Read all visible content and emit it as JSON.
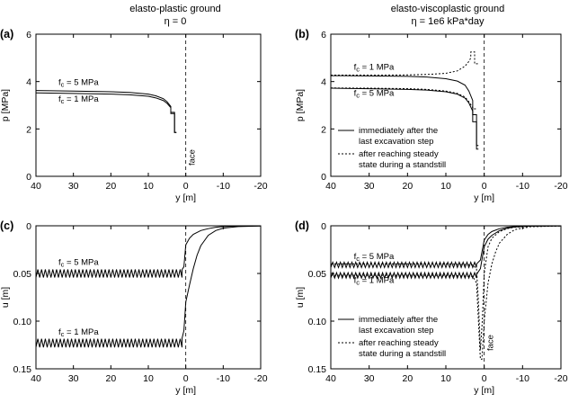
{
  "column_titles": [
    {
      "line1": "elasto-plastic ground",
      "line2": "η = 0"
    },
    {
      "line1": "elasto-viscoplastic ground",
      "line2": "η = 1e6 kPa*day"
    }
  ],
  "legend": {
    "solid_line1": "immediately after the",
    "solid_line2": "last excavation step",
    "dashed_line1": "after reaching steady",
    "dashed_line2": "state during a standstill"
  },
  "chart_data": [
    {
      "id": "a",
      "panel_label": "(a)",
      "type": "line",
      "xlabel": "y [m]",
      "ylabel": "p [MPa]",
      "xlim": [
        40,
        -20
      ],
      "ylim": [
        0,
        6
      ],
      "xticks": [
        40,
        30,
        20,
        10,
        0,
        -10,
        -20
      ],
      "yticks": [
        0,
        2,
        4,
        6
      ],
      "xtick_labels": [
        "40",
        "30",
        "20",
        "10",
        "0",
        "-10",
        "-20"
      ],
      "ytick_labels": [
        "0",
        "2",
        "4",
        "6"
      ],
      "face_label": "face",
      "annotations": [
        {
          "text": "fc = 5 MPa",
          "x": 34,
          "y": 3.85
        },
        {
          "text": "fc = 1 MPa",
          "x": 34,
          "y": 3.15
        }
      ],
      "series": [
        {
          "name": "fc = 5 MPa",
          "style": "solid",
          "x": [
            40,
            30,
            20,
            15,
            10,
            8,
            6,
            5,
            4,
            4,
            3,
            3,
            2.5
          ],
          "y": [
            3.62,
            3.6,
            3.57,
            3.54,
            3.47,
            3.4,
            3.28,
            3.15,
            2.95,
            2.7,
            2.7,
            1.85,
            1.85
          ]
        },
        {
          "name": "fc = 1 MPa",
          "style": "solid",
          "x": [
            40,
            30,
            20,
            15,
            10,
            8,
            6,
            5,
            4,
            4,
            3,
            3,
            2.5
          ],
          "y": [
            3.52,
            3.5,
            3.47,
            3.44,
            3.38,
            3.31,
            3.2,
            3.08,
            2.9,
            2.65,
            2.65,
            1.85,
            1.85
          ]
        }
      ]
    },
    {
      "id": "b",
      "panel_label": "(b)",
      "type": "line",
      "xlabel": "y [m]",
      "ylabel": "p [MPa]",
      "xlim": [
        40,
        -20
      ],
      "ylim": [
        0,
        6
      ],
      "xticks": [
        40,
        30,
        20,
        10,
        0,
        -10,
        -20
      ],
      "yticks": [
        0,
        2,
        4,
        6
      ],
      "xtick_labels": [
        "40",
        "30",
        "20",
        "10",
        "0",
        "-10",
        "-20"
      ],
      "ytick_labels": [
        "0",
        "2",
        "4",
        "6"
      ],
      "annotations": [
        {
          "text": "fc = 1 MPa",
          "x": 34,
          "y": 4.5
        },
        {
          "text": "fc = 5 MPa",
          "x": 34,
          "y": 3.4
        }
      ],
      "series": [
        {
          "name": "fc = 1 MPa",
          "style": "solid",
          "x": [
            40,
            30,
            20,
            15,
            10,
            7,
            5,
            4,
            3,
            3,
            2,
            2,
            1.5
          ],
          "y": [
            4.25,
            4.24,
            4.22,
            4.19,
            4.12,
            4.02,
            3.85,
            3.6,
            3.2,
            2.6,
            2.6,
            1.3,
            1.3
          ]
        },
        {
          "name": "fc = 1 MPa",
          "style": "dashed",
          "x": [
            40,
            30,
            20,
            15,
            10,
            7,
            5,
            4,
            3.5,
            3.5,
            2.5,
            2.5,
            1.5
          ],
          "y": [
            4.27,
            4.27,
            4.28,
            4.3,
            4.35,
            4.45,
            4.65,
            4.85,
            5.0,
            5.25,
            5.25,
            4.75,
            4.75
          ]
        },
        {
          "name": "fc = 5 MPa",
          "style": "solid",
          "x": [
            40,
            30,
            20,
            15,
            10,
            7,
            5,
            4,
            3,
            3,
            2,
            2,
            1.5
          ],
          "y": [
            3.72,
            3.7,
            3.67,
            3.64,
            3.57,
            3.47,
            3.3,
            3.1,
            2.75,
            2.3,
            2.3,
            1.15,
            1.15
          ]
        },
        {
          "name": "fc = 5 MPa",
          "style": "dashed",
          "x": [
            40,
            30,
            20,
            15,
            10,
            7,
            5,
            4,
            3,
            3,
            2
          ],
          "y": [
            3.73,
            3.72,
            3.7,
            3.67,
            3.6,
            3.5,
            3.35,
            3.15,
            2.9,
            2.85,
            2.85
          ]
        }
      ]
    },
    {
      "id": "c",
      "panel_label": "(c)",
      "type": "line",
      "xlabel": "y [m]",
      "ylabel": "u [m]",
      "xlim": [
        40,
        -20
      ],
      "ylim": [
        0.15,
        0
      ],
      "xticks": [
        40,
        30,
        20,
        10,
        0,
        -10,
        -20
      ],
      "yticks": [
        0,
        0.05,
        0.1,
        0.15
      ],
      "xtick_labels": [
        "40",
        "30",
        "20",
        "10",
        "0",
        "-10",
        "-20"
      ],
      "ytick_labels": [
        "0",
        "0.05",
        "0.10",
        "0.15"
      ],
      "annotations": [
        {
          "text": "fc = 5 MPa",
          "x": 34,
          "y": 0.041
        },
        {
          "text": "fc = 1 MPa",
          "x": 34,
          "y": 0.114
        }
      ],
      "series": [
        {
          "name": "fc = 5 MPa",
          "style": "solid",
          "sawtooth": {
            "x_from": 40,
            "x_to": 1,
            "center": 0.05,
            "amplitude": 0.0042,
            "period": 1
          },
          "x": [
            1,
            0.5,
            0,
            -1,
            -2,
            -4,
            -6,
            -8,
            -10,
            -14,
            -20
          ],
          "y": [
            0.046,
            0.043,
            0.02,
            0.013,
            0.009,
            0.005,
            0.003,
            0.0015,
            0.0008,
            0.0003,
            0.0001
          ]
        },
        {
          "name": "fc = 1 MPa",
          "style": "solid",
          "sawtooth": {
            "x_from": 40,
            "x_to": 1,
            "center": 0.123,
            "amplitude": 0.0045,
            "period": 1
          },
          "x": [
            1,
            0.5,
            0,
            -1,
            -2,
            -3,
            -4,
            -6,
            -8,
            -10,
            -14,
            -20
          ],
          "y": [
            0.118,
            0.11,
            0.08,
            0.062,
            0.045,
            0.031,
            0.021,
            0.01,
            0.005,
            0.0025,
            0.0008,
            0.0002
          ]
        }
      ]
    },
    {
      "id": "d",
      "panel_label": "(d)",
      "type": "line",
      "xlabel": "y [m]",
      "ylabel": "u [m]",
      "xlim": [
        40,
        -20
      ],
      "ylim": [
        0.15,
        0
      ],
      "xticks": [
        40,
        30,
        20,
        10,
        0,
        -10,
        -20
      ],
      "yticks": [
        0,
        0.05,
        0.1,
        0.15
      ],
      "xtick_labels": [
        "40",
        "30",
        "20",
        "10",
        "0",
        "-10",
        "-20"
      ],
      "ytick_labels": [
        "0",
        "0.05",
        "0.10",
        "0.15"
      ],
      "face_label": "face",
      "annotations": [
        {
          "text": "fc = 5 MPa",
          "x": 34,
          "y": 0.035
        },
        {
          "text": "fc = 1 MPa",
          "x": 34,
          "y": 0.06
        }
      ],
      "series": [
        {
          "name": "fc = 5 MPa",
          "style": "solid",
          "sawtooth": {
            "x_from": 40,
            "x_to": 2,
            "center": 0.041,
            "amplitude": 0.0028,
            "period": 1
          },
          "x": [
            2,
            1,
            0,
            -1,
            -2,
            -4,
            -6,
            -8,
            -12,
            -20
          ],
          "y": [
            0.04,
            0.036,
            0.015,
            0.009,
            0.006,
            0.003,
            0.0015,
            0.0008,
            0.0003,
            0.0001
          ]
        },
        {
          "name": "fc = 1 MPa",
          "style": "solid",
          "sawtooth": {
            "x_from": 40,
            "x_to": 2,
            "center": 0.052,
            "amplitude": 0.0028,
            "period": 1
          },
          "x": [
            2,
            1,
            0,
            -1,
            -2,
            -4,
            -6,
            -8,
            -12,
            -20
          ],
          "y": [
            0.051,
            0.045,
            0.022,
            0.014,
            0.01,
            0.005,
            0.0025,
            0.0012,
            0.0004,
            0.0001
          ]
        },
        {
          "name": "fc = 5 MPa",
          "style": "dashed",
          "x": [
            40,
            10,
            3,
            2,
            1.5,
            1,
            0.5,
            0,
            -1,
            -2,
            -4,
            -6,
            -8,
            -12,
            -20
          ],
          "y": [
            0.04,
            0.04,
            0.041,
            0.045,
            0.08,
            0.13,
            0.1,
            0.05,
            0.022,
            0.013,
            0.006,
            0.003,
            0.0015,
            0.0005,
            0.0001
          ]
        },
        {
          "name": "fc = 1 MPa",
          "style": "dashed",
          "x": [
            40,
            10,
            3,
            2,
            1.5,
            1,
            0.6,
            0,
            -1,
            -2,
            -3,
            -4,
            -6,
            -8,
            -12,
            -20
          ],
          "y": [
            0.052,
            0.052,
            0.053,
            0.06,
            0.1,
            0.14,
            0.14,
            0.1,
            0.06,
            0.04,
            0.027,
            0.018,
            0.009,
            0.004,
            0.001,
            0.0002
          ]
        }
      ]
    }
  ]
}
